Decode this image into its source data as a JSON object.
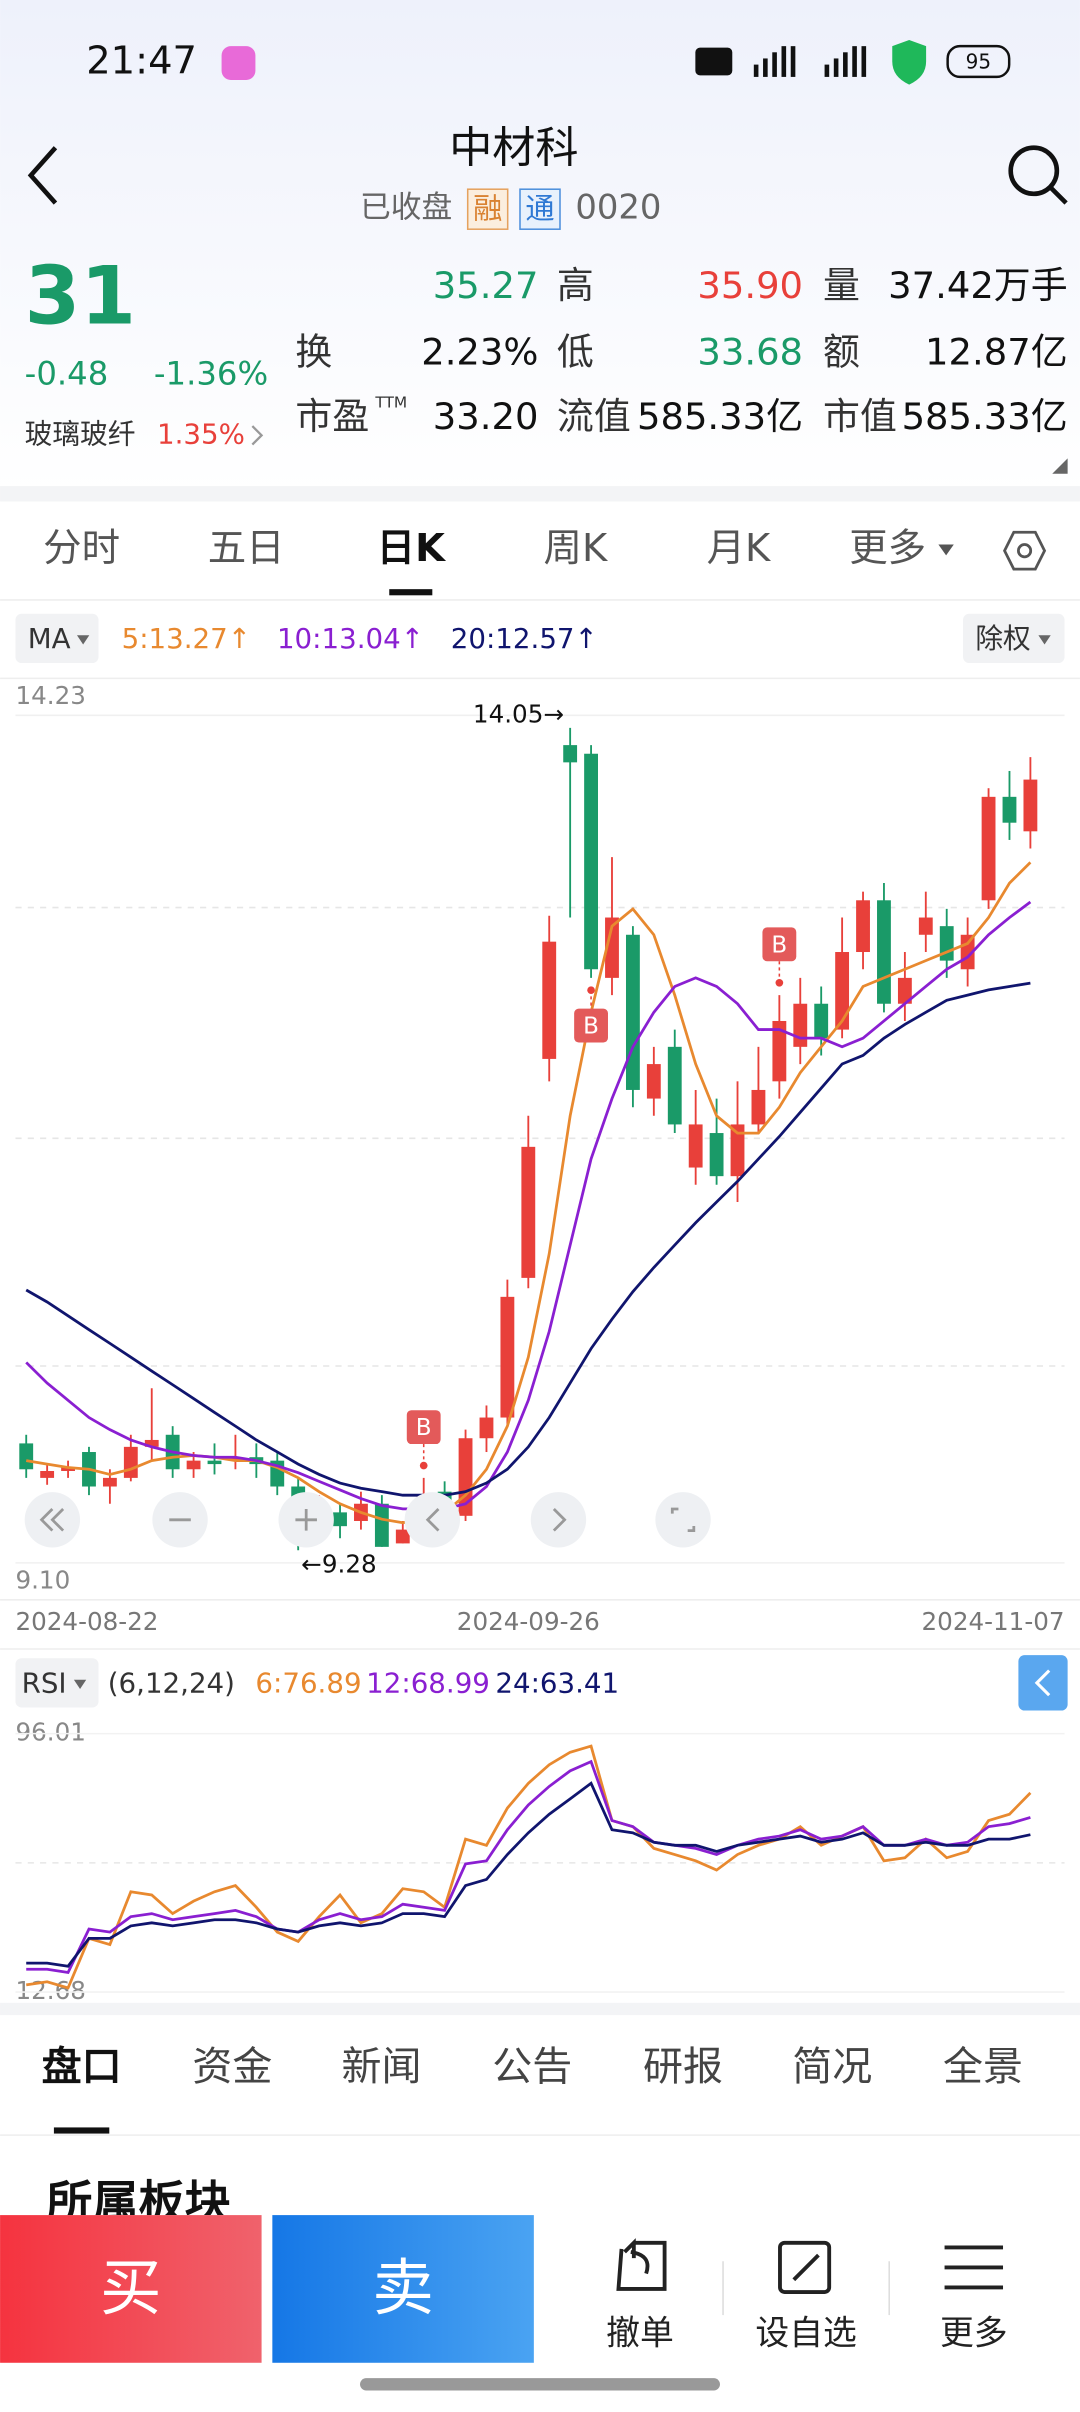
{
  "status_bar": {
    "time": "21:47",
    "battery": "95"
  },
  "header": {
    "name": "中材科",
    "market_status": "已收盘",
    "tags": [
      "融",
      "通"
    ],
    "code": "0020"
  },
  "quote": {
    "price": "31",
    "change": "-0.48",
    "change_pct": "-1.36%",
    "sector": "玻璃玻纤",
    "sector_pct": "1.35%",
    "stats": [
      [
        {
          "value": "35.27",
          "tone": "down"
        },
        {
          "label": "高",
          "value": "35.90",
          "tone": "up"
        },
        {
          "label": "量",
          "value": "37.42万手"
        }
      ],
      [
        {
          "label": "换",
          "value": "2.23%"
        },
        {
          "label": "低",
          "value": "33.68",
          "tone": "down"
        },
        {
          "label": "额",
          "value": "12.87亿"
        }
      ],
      [
        {
          "label": "市盈",
          "label_sup": "TTM",
          "value": "33.20"
        },
        {
          "label": "流值",
          "value": "585.33亿"
        },
        {
          "label": "市值",
          "value": "585.33亿"
        }
      ]
    ]
  },
  "period_tabs": [
    "分时",
    "五日",
    "日K",
    "周K",
    "月K",
    "更多"
  ],
  "active_period": 2,
  "chart_data": [
    {
      "type": "candlestick",
      "indicator": "MA",
      "adjust": "除权",
      "categories": [
        "2024-08-22",
        null,
        null,
        null,
        null,
        null,
        null,
        null,
        null,
        null,
        null,
        null,
        null,
        null,
        null,
        null,
        null,
        null,
        null,
        null,
        null,
        null,
        null,
        null,
        "2024-09-26",
        null,
        null,
        null,
        null,
        null,
        null,
        null,
        null,
        null,
        null,
        null,
        null,
        null,
        null,
        null,
        null,
        null,
        null,
        null,
        null,
        null,
        null,
        null,
        "2024-11-07"
      ],
      "open": [
        9.9,
        9.7,
        9.74,
        9.85,
        9.65,
        9.7,
        9.88,
        9.95,
        9.75,
        9.8,
        9.8,
        9.82,
        9.8,
        9.65,
        9.4,
        9.5,
        9.45,
        9.55,
        9.32,
        9.45,
        9.62,
        9.48,
        9.93,
        10.05,
        10.86,
        12.13,
        13.95,
        13.9,
        12.6,
        12.85,
        11.9,
        12.2,
        11.5,
        11.7,
        11.45,
        11.75,
        12.0,
        12.2,
        12.45,
        12.3,
        12.75,
        13.05,
        12.45,
        12.85,
        12.9,
        12.65,
        13.05,
        13.65,
        13.45
      ],
      "close": [
        9.75,
        9.74,
        9.76,
        9.65,
        9.7,
        9.88,
        9.92,
        9.75,
        9.8,
        9.78,
        9.82,
        9.78,
        9.65,
        9.45,
        9.55,
        9.42,
        9.55,
        9.3,
        9.4,
        9.6,
        9.55,
        9.93,
        10.05,
        10.75,
        11.62,
        12.81,
        13.85,
        12.65,
        12.95,
        11.95,
        12.1,
        11.75,
        11.75,
        11.45,
        11.75,
        11.95,
        12.35,
        12.45,
        12.25,
        12.75,
        13.05,
        12.45,
        12.6,
        12.95,
        12.7,
        12.85,
        13.65,
        13.5,
        13.75
      ],
      "high": [
        9.95,
        9.78,
        9.8,
        9.88,
        9.75,
        9.95,
        10.22,
        10.0,
        9.85,
        9.9,
        9.95,
        9.9,
        9.85,
        9.7,
        9.6,
        9.55,
        9.62,
        9.6,
        9.45,
        9.7,
        9.68,
        9.98,
        10.12,
        10.85,
        11.8,
        12.96,
        14.05,
        13.95,
        13.3,
        12.9,
        12.2,
        12.3,
        11.95,
        11.9,
        12.0,
        12.2,
        12.5,
        12.6,
        12.55,
        12.95,
        13.1,
        13.15,
        12.75,
        13.1,
        13.0,
        12.95,
        13.7,
        13.8,
        13.88
      ],
      "low": [
        9.7,
        9.66,
        9.7,
        9.6,
        9.55,
        9.68,
        9.8,
        9.7,
        9.7,
        9.72,
        9.75,
        9.7,
        9.6,
        9.28,
        9.35,
        9.35,
        9.4,
        9.3,
        9.32,
        9.42,
        9.5,
        9.45,
        9.85,
        10.0,
        10.8,
        12.0,
        12.95,
        12.6,
        12.5,
        11.85,
        11.8,
        11.7,
        11.4,
        11.4,
        11.3,
        11.7,
        11.9,
        12.1,
        12.15,
        12.25,
        12.65,
        12.4,
        12.35,
        12.75,
        12.6,
        12.55,
        13.0,
        13.4,
        13.35
      ],
      "colors": {
        "up": "#e8403a",
        "down": "#1a9a68"
      },
      "series": [
        {
          "name": "5:13.27↑",
          "color": "#e8892f",
          "values": [
            9.8,
            9.78,
            9.76,
            9.75,
            9.72,
            9.75,
            9.8,
            9.82,
            9.83,
            9.82,
            9.8,
            9.8,
            9.76,
            9.7,
            9.62,
            9.55,
            9.5,
            9.46,
            9.44,
            9.46,
            9.5,
            9.6,
            9.75,
            10.0,
            10.4,
            11.0,
            11.8,
            12.4,
            12.9,
            13.0,
            12.85,
            12.5,
            12.1,
            11.8,
            11.7,
            11.7,
            11.85,
            12.05,
            12.2,
            12.35,
            12.55,
            12.6,
            12.65,
            12.7,
            12.75,
            12.8,
            12.95,
            13.15,
            13.27
          ]
        },
        {
          "name": "10:13.04↑",
          "color": "#8a1fd1",
          "values": [
            10.37,
            10.25,
            10.15,
            10.05,
            9.98,
            9.92,
            9.88,
            9.85,
            9.83,
            9.82,
            9.82,
            9.8,
            9.77,
            9.73,
            9.68,
            9.63,
            9.58,
            9.54,
            9.52,
            9.52,
            9.52,
            9.55,
            9.65,
            9.85,
            10.15,
            10.55,
            11.05,
            11.55,
            11.9,
            12.2,
            12.4,
            12.55,
            12.6,
            12.55,
            12.45,
            12.3,
            12.3,
            12.25,
            12.25,
            12.2,
            12.25,
            12.35,
            12.45,
            12.55,
            12.65,
            12.72,
            12.85,
            12.95,
            13.04
          ]
        },
        {
          "name": "20:12.57↑",
          "color": "#10156e",
          "values": [
            10.79,
            10.72,
            10.64,
            10.56,
            10.48,
            10.4,
            10.32,
            10.24,
            10.16,
            10.08,
            10.0,
            9.92,
            9.85,
            9.78,
            9.72,
            9.67,
            9.64,
            9.62,
            9.6,
            9.6,
            9.6,
            9.62,
            9.67,
            9.75,
            9.88,
            10.05,
            10.25,
            10.45,
            10.62,
            10.78,
            10.92,
            11.05,
            11.18,
            11.3,
            11.42,
            11.55,
            11.68,
            11.82,
            11.96,
            12.1,
            12.15,
            12.25,
            12.33,
            12.4,
            12.47,
            12.5,
            12.53,
            12.55,
            12.57
          ]
        }
      ],
      "ylim": [
        9.1,
        14.23
      ],
      "yticks": [
        {
          "value": 9.1,
          "label": "9.10"
        },
        14.23
      ],
      "annotations": [
        "14.05→",
        "←9.28"
      ],
      "signals": [
        "B",
        "B",
        "B"
      ]
    },
    {
      "type": "line",
      "indicator": "RSI",
      "params": "(6,12,24)",
      "series": [
        {
          "name": "6:76.89",
          "color": "#e8892f",
          "values": [
            15,
            16,
            14,
            30,
            28,
            45,
            44,
            38,
            42,
            45,
            47,
            40,
            32,
            29,
            37,
            44,
            35,
            38,
            46,
            45,
            40,
            62,
            60,
            72,
            80,
            86,
            90,
            92,
            68,
            66,
            59,
            57,
            55,
            52,
            57,
            60,
            62,
            66,
            60,
            63,
            66,
            55,
            56,
            62,
            56,
            58,
            68,
            70,
            76.89
          ]
        },
        {
          "name": "12:68.99",
          "color": "#8a1fd1",
          "values": [
            20,
            20,
            19,
            33,
            32,
            37,
            38,
            36,
            37,
            38,
            39,
            37,
            33,
            32,
            36,
            38,
            36,
            37,
            41,
            40,
            39,
            54,
            55,
            65,
            73,
            79,
            84,
            87,
            68,
            66,
            61,
            60,
            59,
            57,
            60,
            62,
            63,
            65,
            62,
            63,
            66,
            60,
            60,
            62,
            60,
            61,
            66,
            67,
            68.99
          ]
        },
        {
          "name": "24:63.41",
          "color": "#10156e",
          "values": [
            22,
            22,
            21,
            30,
            30,
            34,
            35,
            34,
            35,
            36,
            36,
            35,
            33,
            32,
            34,
            35,
            34,
            35,
            38,
            38,
            37,
            47,
            49,
            57,
            64,
            70,
            75,
            80,
            65,
            64,
            61,
            60,
            60,
            58,
            60,
            61,
            62,
            63,
            61,
            62,
            64,
            60,
            60,
            61,
            60,
            60,
            62,
            62,
            63.41
          ]
        }
      ],
      "ylim": [
        12.68,
        96.01
      ],
      "yticks": [
        12.68,
        96.01
      ]
    }
  ],
  "info_tabs": [
    "盘口",
    "资金",
    "新闻",
    "公告",
    "研报",
    "简况",
    "全景"
  ],
  "active_info": 0,
  "section_title": "所属板块",
  "actions": {
    "buy": "买",
    "sell": "卖",
    "tools": [
      "撤单",
      "设自选",
      "更多"
    ]
  }
}
